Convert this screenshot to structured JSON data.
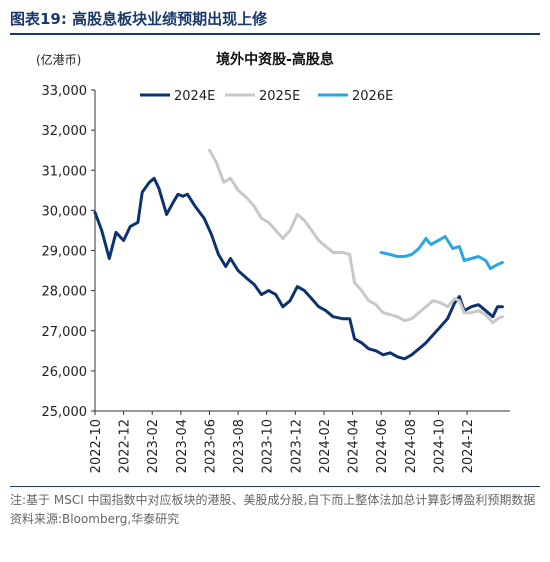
{
  "figure": {
    "title": "图表19:  高股息板块业绩预期出现上修",
    "unit": "(亿港币)",
    "note": "注:基于 MSCI 中国指数中对应板块的港股、美股成分股,自下而上整体法加总计算彭博盈利预期数据",
    "source": "资料来源:Bloomberg,华泰研究"
  },
  "colors": {
    "s2024": "#0d3270",
    "s2025": "#c8c8c8",
    "s2026": "#2aa6e0",
    "axis": "#333333"
  },
  "chart_data": {
    "type": "line",
    "title": "境外中资股-高股息",
    "ylim": [
      25000,
      33000
    ],
    "yticks": [
      "25,000",
      "26,000",
      "27,000",
      "28,000",
      "29,000",
      "30,000",
      "31,000",
      "32,000",
      "33,000"
    ],
    "ytick_values": [
      25000,
      26000,
      27000,
      28000,
      29000,
      30000,
      31000,
      32000,
      33000
    ],
    "xlim": [
      "2022-10",
      "2025-03"
    ],
    "xticks": [
      "2022-10",
      "2022-12",
      "2023-02",
      "2023-04",
      "2023-06",
      "2023-08",
      "2023-10",
      "2023-12",
      "2024-02",
      "2024-04",
      "2024-06",
      "2024-08",
      "2024-10",
      "2024-12"
    ],
    "legend_position": "top",
    "series": [
      {
        "name": "2024E",
        "points": [
          [
            "2022-10",
            29950
          ],
          [
            "2022-10-15",
            29500
          ],
          [
            "2022-11",
            28800
          ],
          [
            "2022-11-15",
            29450
          ],
          [
            "2022-12",
            29250
          ],
          [
            "2022-12-15",
            29600
          ],
          [
            "2023-01",
            29700
          ],
          [
            "2023-01-10",
            30450
          ],
          [
            "2023-01-25",
            30700
          ],
          [
            "2023-02-05",
            30800
          ],
          [
            "2023-02-15",
            30550
          ],
          [
            "2023-03-01",
            29900
          ],
          [
            "2023-03-15",
            30200
          ],
          [
            "2023-03-25",
            30400
          ],
          [
            "2023-04-05",
            30350
          ],
          [
            "2023-04-15",
            30400
          ],
          [
            "2023-05-01",
            30100
          ],
          [
            "2023-05-20",
            29800
          ],
          [
            "2023-06-05",
            29400
          ],
          [
            "2023-06-20",
            28900
          ],
          [
            "2023-07-05",
            28600
          ],
          [
            "2023-07-15",
            28800
          ],
          [
            "2023-08-01",
            28500
          ],
          [
            "2023-08-20",
            28300
          ],
          [
            "2023-09-05",
            28150
          ],
          [
            "2023-09-20",
            27900
          ],
          [
            "2023-10-05",
            28000
          ],
          [
            "2023-10-20",
            27900
          ],
          [
            "2023-11-05",
            27600
          ],
          [
            "2023-11-20",
            27750
          ],
          [
            "2023-12-05",
            28100
          ],
          [
            "2023-12-20",
            28000
          ],
          [
            "2024-01-05",
            27800
          ],
          [
            "2024-01-20",
            27600
          ],
          [
            "2024-02-05",
            27500
          ],
          [
            "2024-02-20",
            27350
          ],
          [
            "2024-03-10",
            27300
          ],
          [
            "2024-03-25",
            27300
          ],
          [
            "2024-04-05",
            26800
          ],
          [
            "2024-04-20",
            26700
          ],
          [
            "2024-05-05",
            26550
          ],
          [
            "2024-05-20",
            26500
          ],
          [
            "2024-06-05",
            26400
          ],
          [
            "2024-06-20",
            26450
          ],
          [
            "2024-07-05",
            26350
          ],
          [
            "2024-07-20",
            26300
          ],
          [
            "2024-08-05",
            26400
          ],
          [
            "2024-08-20",
            26550
          ],
          [
            "2024-09-05",
            26700
          ],
          [
            "2024-09-20",
            26900
          ],
          [
            "2024-10-05",
            27100
          ],
          [
            "2024-10-20",
            27300
          ],
          [
            "2024-11-05",
            27700
          ],
          [
            "2024-11-15",
            27850
          ],
          [
            "2024-11-25",
            27500
          ],
          [
            "2024-12-10",
            27600
          ],
          [
            "2024-12-25",
            27650
          ],
          [
            "2025-01-10",
            27500
          ],
          [
            "2025-01-25",
            27350
          ],
          [
            "2025-02-05",
            27600
          ],
          [
            "2025-02-15",
            27600
          ]
        ]
      },
      {
        "name": "2025E",
        "points": [
          [
            "2023-06",
            31500
          ],
          [
            "2023-06-15",
            31200
          ],
          [
            "2023-07-01",
            30700
          ],
          [
            "2023-07-15",
            30800
          ],
          [
            "2023-08-01",
            30500
          ],
          [
            "2023-08-20",
            30300
          ],
          [
            "2023-09-05",
            30100
          ],
          [
            "2023-09-20",
            29800
          ],
          [
            "2023-10-05",
            29700
          ],
          [
            "2023-10-20",
            29500
          ],
          [
            "2023-11-05",
            29300
          ],
          [
            "2023-11-20",
            29500
          ],
          [
            "2023-12-05",
            29900
          ],
          [
            "2023-12-20",
            29750
          ],
          [
            "2024-01-05",
            29500
          ],
          [
            "2024-01-20",
            29250
          ],
          [
            "2024-02-05",
            29100
          ],
          [
            "2024-02-20",
            28950
          ],
          [
            "2024-03-10",
            28950
          ],
          [
            "2024-03-25",
            28900
          ],
          [
            "2024-04-05",
            28200
          ],
          [
            "2024-04-20",
            28000
          ],
          [
            "2024-05-05",
            27750
          ],
          [
            "2024-05-20",
            27650
          ],
          [
            "2024-06-05",
            27450
          ],
          [
            "2024-06-20",
            27400
          ],
          [
            "2024-07-05",
            27350
          ],
          [
            "2024-07-20",
            27250
          ],
          [
            "2024-08-05",
            27300
          ],
          [
            "2024-08-20",
            27450
          ],
          [
            "2024-09-05",
            27600
          ],
          [
            "2024-09-20",
            27750
          ],
          [
            "2024-10-05",
            27700
          ],
          [
            "2024-10-20",
            27600
          ],
          [
            "2024-11-05",
            27800
          ],
          [
            "2024-11-15",
            27750
          ],
          [
            "2024-11-25",
            27450
          ],
          [
            "2024-12-10",
            27450
          ],
          [
            "2024-12-25",
            27500
          ],
          [
            "2025-01-10",
            27400
          ],
          [
            "2025-01-25",
            27200
          ],
          [
            "2025-02-05",
            27300
          ],
          [
            "2025-02-15",
            27350
          ]
        ]
      },
      {
        "name": "2026E",
        "points": [
          [
            "2024-06",
            28950
          ],
          [
            "2024-06-20",
            28900
          ],
          [
            "2024-07-05",
            28850
          ],
          [
            "2024-07-20",
            28850
          ],
          [
            "2024-08-05",
            28900
          ],
          [
            "2024-08-20",
            29050
          ],
          [
            "2024-09-05",
            29300
          ],
          [
            "2024-09-15",
            29150
          ],
          [
            "2024-10-01",
            29250
          ],
          [
            "2024-10-15",
            29350
          ],
          [
            "2024-11-01",
            29050
          ],
          [
            "2024-11-15",
            29100
          ],
          [
            "2024-11-25",
            28750
          ],
          [
            "2024-12-10",
            28800
          ],
          [
            "2024-12-25",
            28850
          ],
          [
            "2025-01-10",
            28750
          ],
          [
            "2025-01-20",
            28550
          ],
          [
            "2025-02-05",
            28650
          ],
          [
            "2025-02-15",
            28700
          ]
        ]
      }
    ]
  }
}
